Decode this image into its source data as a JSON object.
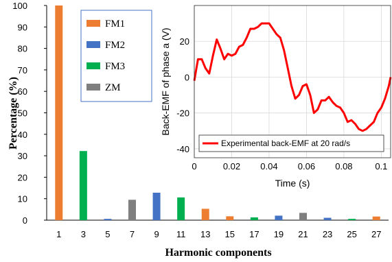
{
  "chart_data": [
    {
      "type": "bar",
      "xlabel": "Harmonic components",
      "ylabel": "Percentage (%)",
      "ylim": [
        0,
        100
      ],
      "yticks": [
        0,
        10,
        20,
        30,
        40,
        50,
        60,
        70,
        80,
        90,
        100
      ],
      "categories": [
        "1",
        "3",
        "5",
        "7",
        "9",
        "11",
        "13",
        "15",
        "17",
        "19",
        "21",
        "23",
        "25",
        "27"
      ],
      "legend_position": "top-left",
      "grid": false,
      "series": [
        {
          "name": "FM1",
          "color": "#ed7d31",
          "values": [
            100,
            null,
            null,
            null,
            null,
            null,
            5.3,
            1.8,
            null,
            null,
            null,
            null,
            null,
            1.7
          ]
        },
        {
          "name": "FM2",
          "color": "#4472c4",
          "values": [
            null,
            null,
            0.6,
            null,
            12.8,
            null,
            null,
            null,
            null,
            2.1,
            null,
            1.1,
            null,
            null
          ]
        },
        {
          "name": "FM3",
          "color": "#00b050",
          "values": [
            null,
            32.2,
            null,
            null,
            null,
            10.6,
            null,
            null,
            1.3,
            null,
            null,
            null,
            0.6,
            null
          ]
        },
        {
          "name": "ZM",
          "color": "#7f7f7f",
          "values": [
            null,
            null,
            null,
            9.5,
            null,
            null,
            null,
            null,
            null,
            null,
            3.4,
            null,
            null,
            null
          ]
        }
      ]
    },
    {
      "type": "line",
      "xlabel": "Time (s)",
      "ylabel": "Back-EMF of phase a (V)",
      "xlim": [
        0,
        0.105
      ],
      "ylim": [
        -45,
        40
      ],
      "xticks": [
        0,
        0.02,
        0.04,
        0.06,
        0.08,
        0.1
      ],
      "xtick_labels": [
        "0",
        "0.02",
        "0.04",
        "0.06",
        "0.08",
        "0.1"
      ],
      "yticks": [
        -40,
        -20,
        0,
        20
      ],
      "legend_position": "bottom",
      "grid": true,
      "series": [
        {
          "name": "Experimental back-EMF at 20 rad/s",
          "color": "#ff0000",
          "x": [
            0,
            0.002,
            0.004,
            0.006,
            0.008,
            0.01,
            0.012,
            0.014,
            0.016,
            0.018,
            0.02,
            0.022,
            0.024,
            0.026,
            0.028,
            0.03,
            0.032,
            0.034,
            0.036,
            0.038,
            0.04,
            0.042,
            0.044,
            0.046,
            0.048,
            0.05,
            0.052,
            0.054,
            0.056,
            0.058,
            0.06,
            0.062,
            0.064,
            0.066,
            0.068,
            0.07,
            0.072,
            0.074,
            0.076,
            0.078,
            0.08,
            0.082,
            0.084,
            0.086,
            0.088,
            0.09,
            0.092,
            0.094,
            0.096,
            0.098,
            0.1,
            0.102,
            0.104,
            0.105
          ],
          "y": [
            -2,
            10,
            10,
            5,
            2,
            12,
            21,
            16,
            10,
            13,
            12,
            13,
            17,
            18,
            22,
            27,
            27,
            28,
            30,
            30,
            30,
            27,
            24,
            22,
            15,
            5,
            -5,
            -12,
            -10,
            -5,
            -4,
            -10,
            -20,
            -18,
            -13,
            -13,
            -11,
            -14,
            -16,
            -17,
            -20,
            -25,
            -24,
            -26,
            -29,
            -30,
            -29,
            -27,
            -25,
            -20,
            -17,
            -12,
            -5,
            0
          ]
        }
      ]
    }
  ]
}
